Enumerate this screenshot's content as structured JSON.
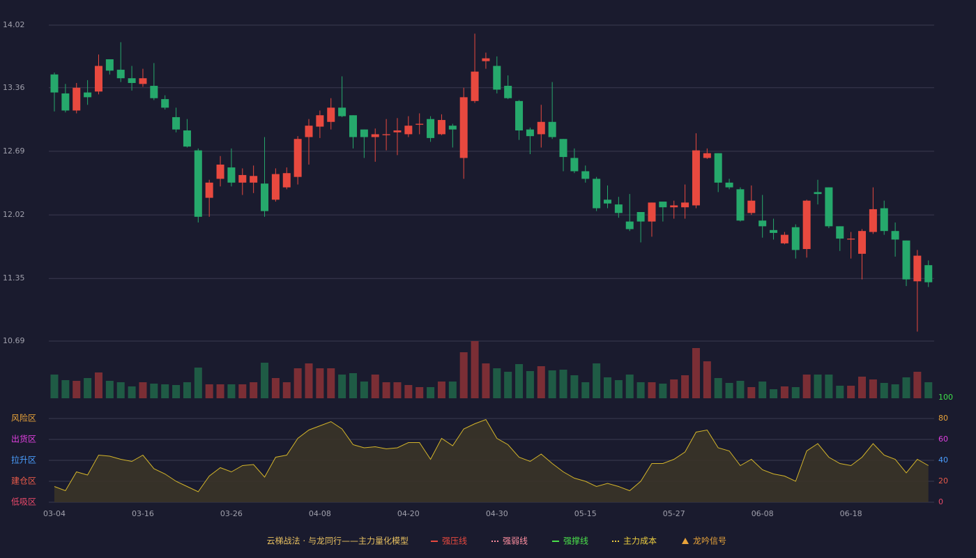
{
  "chart_data": [
    {
      "type": "candlestick",
      "ylim": [
        10.69,
        14.02
      ],
      "yticks": [
        14.02,
        13.36,
        12.69,
        12.02,
        11.35,
        10.69
      ],
      "grid": true,
      "up_color": "#e8493f",
      "down_color": "#26a96c",
      "open": [
        13.5,
        13.3,
        13.12,
        13.31,
        13.32,
        13.66,
        13.55,
        13.46,
        13.4,
        13.38,
        13.24,
        13.05,
        12.91,
        12.7,
        12.2,
        12.4,
        12.52,
        12.36,
        12.36,
        12.35,
        12.18,
        12.31,
        12.42,
        12.84,
        12.95,
        13.0,
        13.15,
        13.07,
        12.92,
        12.84,
        12.86,
        12.89,
        12.87,
        12.97,
        13.03,
        12.87,
        12.96,
        12.62,
        13.22,
        13.64,
        13.59,
        13.38,
        13.22,
        12.92,
        12.87,
        13.0,
        12.82,
        12.62,
        12.48,
        12.4,
        12.18,
        12.13,
        11.95,
        12.05,
        11.95,
        12.16,
        12.1,
        12.1,
        12.12,
        12.62,
        12.67,
        12.36,
        12.29,
        12.04,
        11.96,
        11.86,
        11.72,
        11.89,
        11.66,
        12.26,
        12.31,
        11.9,
        11.76,
        11.61,
        11.84,
        12.09,
        11.85,
        11.75,
        11.32,
        11.49
      ],
      "high": [
        13.52,
        13.4,
        13.41,
        13.44,
        13.71,
        13.66,
        13.84,
        13.59,
        13.56,
        13.62,
        13.28,
        13.15,
        13.03,
        12.72,
        12.39,
        12.64,
        12.72,
        12.51,
        12.54,
        12.84,
        12.51,
        12.52,
        12.85,
        13.03,
        13.12,
        13.25,
        13.48,
        13.07,
        12.92,
        12.93,
        13.03,
        13.04,
        13.06,
        13.09,
        13.06,
        13.08,
        12.98,
        13.36,
        13.93,
        13.73,
        13.69,
        13.49,
        13.23,
        12.94,
        13.18,
        13.42,
        12.82,
        12.72,
        12.54,
        12.42,
        12.33,
        12.21,
        12.24,
        12.05,
        12.15,
        12.16,
        12.17,
        12.34,
        12.88,
        12.72,
        12.67,
        12.4,
        12.31,
        12.33,
        12.23,
        11.98,
        11.84,
        11.92,
        12.18,
        12.39,
        12.31,
        11.9,
        11.84,
        11.87,
        12.31,
        12.17,
        11.94,
        11.75,
        11.65,
        11.54
      ],
      "low": [
        13.11,
        13.1,
        13.09,
        13.18,
        13.29,
        13.5,
        13.42,
        13.33,
        13.37,
        13.23,
        13.13,
        12.89,
        12.73,
        11.94,
        12.0,
        12.32,
        12.32,
        12.23,
        12.25,
        12.0,
        12.16,
        12.29,
        12.34,
        12.55,
        12.83,
        12.92,
        13.05,
        12.72,
        12.62,
        12.58,
        12.7,
        12.65,
        12.84,
        12.87,
        12.79,
        12.86,
        12.73,
        12.4,
        13.2,
        13.56,
        13.3,
        13.24,
        12.81,
        12.66,
        12.73,
        12.82,
        12.48,
        12.46,
        12.36,
        12.06,
        12.09,
        11.99,
        11.85,
        11.73,
        11.79,
        11.95,
        11.98,
        11.98,
        12.09,
        12.61,
        12.26,
        12.29,
        11.95,
        12.02,
        11.78,
        11.76,
        11.71,
        11.56,
        11.57,
        12.13,
        11.88,
        11.64,
        11.56,
        11.34,
        11.82,
        11.81,
        11.58,
        11.27,
        10.79,
        11.26
      ],
      "close": [
        13.31,
        13.12,
        13.36,
        13.26,
        13.59,
        13.54,
        13.46,
        13.41,
        13.46,
        13.25,
        13.15,
        12.92,
        12.74,
        12.0,
        12.36,
        12.55,
        12.36,
        12.44,
        12.43,
        12.06,
        12.45,
        12.46,
        12.82,
        12.96,
        13.07,
        13.15,
        13.06,
        12.84,
        12.84,
        12.87,
        12.87,
        12.91,
        12.96,
        12.98,
        12.83,
        13.02,
        12.92,
        13.26,
        13.53,
        13.67,
        13.34,
        13.25,
        12.91,
        12.85,
        13.0,
        12.84,
        12.63,
        12.48,
        12.4,
        12.09,
        12.14,
        12.04,
        11.87,
        11.95,
        12.15,
        12.1,
        12.12,
        12.15,
        12.7,
        12.67,
        12.36,
        12.31,
        11.96,
        12.17,
        11.9,
        11.83,
        11.81,
        11.65,
        12.17,
        12.24,
        11.9,
        11.77,
        11.77,
        11.85,
        12.08,
        11.85,
        11.76,
        11.34,
        11.59,
        11.31
      ]
    },
    {
      "type": "volume",
      "up_color": "#7b2e35",
      "down_color": "#1f5b45",
      "values": [
        34,
        26,
        25,
        29,
        37,
        25,
        23,
        17,
        23,
        21,
        20,
        19,
        23,
        44,
        20,
        20,
        20,
        20,
        23,
        51,
        29,
        23,
        43,
        50,
        43,
        43,
        34,
        36,
        24,
        34,
        23,
        23,
        19,
        16,
        16,
        24,
        24,
        66,
        82,
        50,
        43,
        38,
        49,
        39,
        46,
        40,
        41,
        33,
        23,
        50,
        30,
        26,
        34,
        23,
        23,
        21,
        27,
        33,
        72,
        53,
        29,
        22,
        25,
        16,
        24,
        13,
        17,
        16,
        34,
        34,
        34,
        18,
        18,
        31,
        27,
        22,
        20,
        30,
        38,
        23
      ]
    },
    {
      "type": "line",
      "color": "#d4b52a",
      "fill": "#3a3428",
      "ylim": [
        0,
        100
      ],
      "yticks": [
        0,
        20,
        40,
        60,
        80,
        100
      ],
      "ytick_colors": [
        "#e8496a",
        "#e85a4a",
        "#4a9eff",
        "#e040e0",
        "#e8a33a",
        "#3ee04a"
      ],
      "zones": [
        {
          "value": 80,
          "label": "风险区"
        },
        {
          "value": 60,
          "label": "出货区"
        },
        {
          "value": 40,
          "label": "拉升区"
        },
        {
          "value": 20,
          "label": "建仓区"
        },
        {
          "value": 0,
          "label": "低吸区"
        }
      ],
      "zone_colors": [
        "#e8a33a",
        "#e040e0",
        "#4a9eff",
        "#e85a4a",
        "#e8496a"
      ],
      "grid": true,
      "categories": [
        "03-04",
        null,
        null,
        null,
        null,
        null,
        null,
        null,
        "03-16",
        null,
        null,
        null,
        null,
        null,
        null,
        null,
        "03-26",
        null,
        null,
        null,
        null,
        null,
        null,
        null,
        "04-08",
        null,
        null,
        null,
        null,
        null,
        null,
        null,
        "04-20",
        null,
        null,
        null,
        null,
        null,
        null,
        null,
        "04-30",
        null,
        null,
        null,
        null,
        null,
        null,
        null,
        "05-15",
        null,
        null,
        null,
        null,
        null,
        null,
        null,
        "05-27",
        null,
        null,
        null,
        null,
        null,
        null,
        null,
        "06-08",
        null,
        null,
        null,
        null,
        null,
        null,
        null,
        "06-18",
        null,
        null,
        null,
        null,
        null,
        null,
        null
      ],
      "values": [
        15,
        11,
        29,
        26,
        45,
        44,
        41,
        39,
        45,
        32,
        27,
        20,
        15,
        10,
        25,
        33,
        29,
        35,
        36,
        24,
        43,
        45,
        61,
        69,
        73,
        77,
        70,
        55,
        52,
        53,
        51,
        52,
        57,
        57,
        41,
        61,
        54,
        70,
        75,
        79,
        61,
        55,
        43,
        39,
        46,
        37,
        29,
        23,
        20,
        15,
        18,
        15,
        11,
        20,
        37,
        37,
        41,
        48,
        67,
        69,
        52,
        49,
        35,
        41,
        31,
        27,
        25,
        20,
        49,
        56,
        43,
        37,
        35,
        43,
        56,
        45,
        41,
        28,
        41,
        35
      ]
    }
  ],
  "footer": {
    "caption": "云梯战法 · 与龙同行——主力量化模型",
    "legend": [
      {
        "name": "强压线",
        "color": "#e8493f",
        "style": "solid"
      },
      {
        "name": "强弱线",
        "color": "#ff8fa0",
        "style": "dashed"
      },
      {
        "name": "强撑线",
        "color": "#4ae04a",
        "style": "solid"
      },
      {
        "name": "主力成本",
        "color": "#f0d040",
        "style": "dashed"
      },
      {
        "name": "龙吟信号",
        "color": "#e8a33a",
        "style": "triangle"
      }
    ]
  }
}
